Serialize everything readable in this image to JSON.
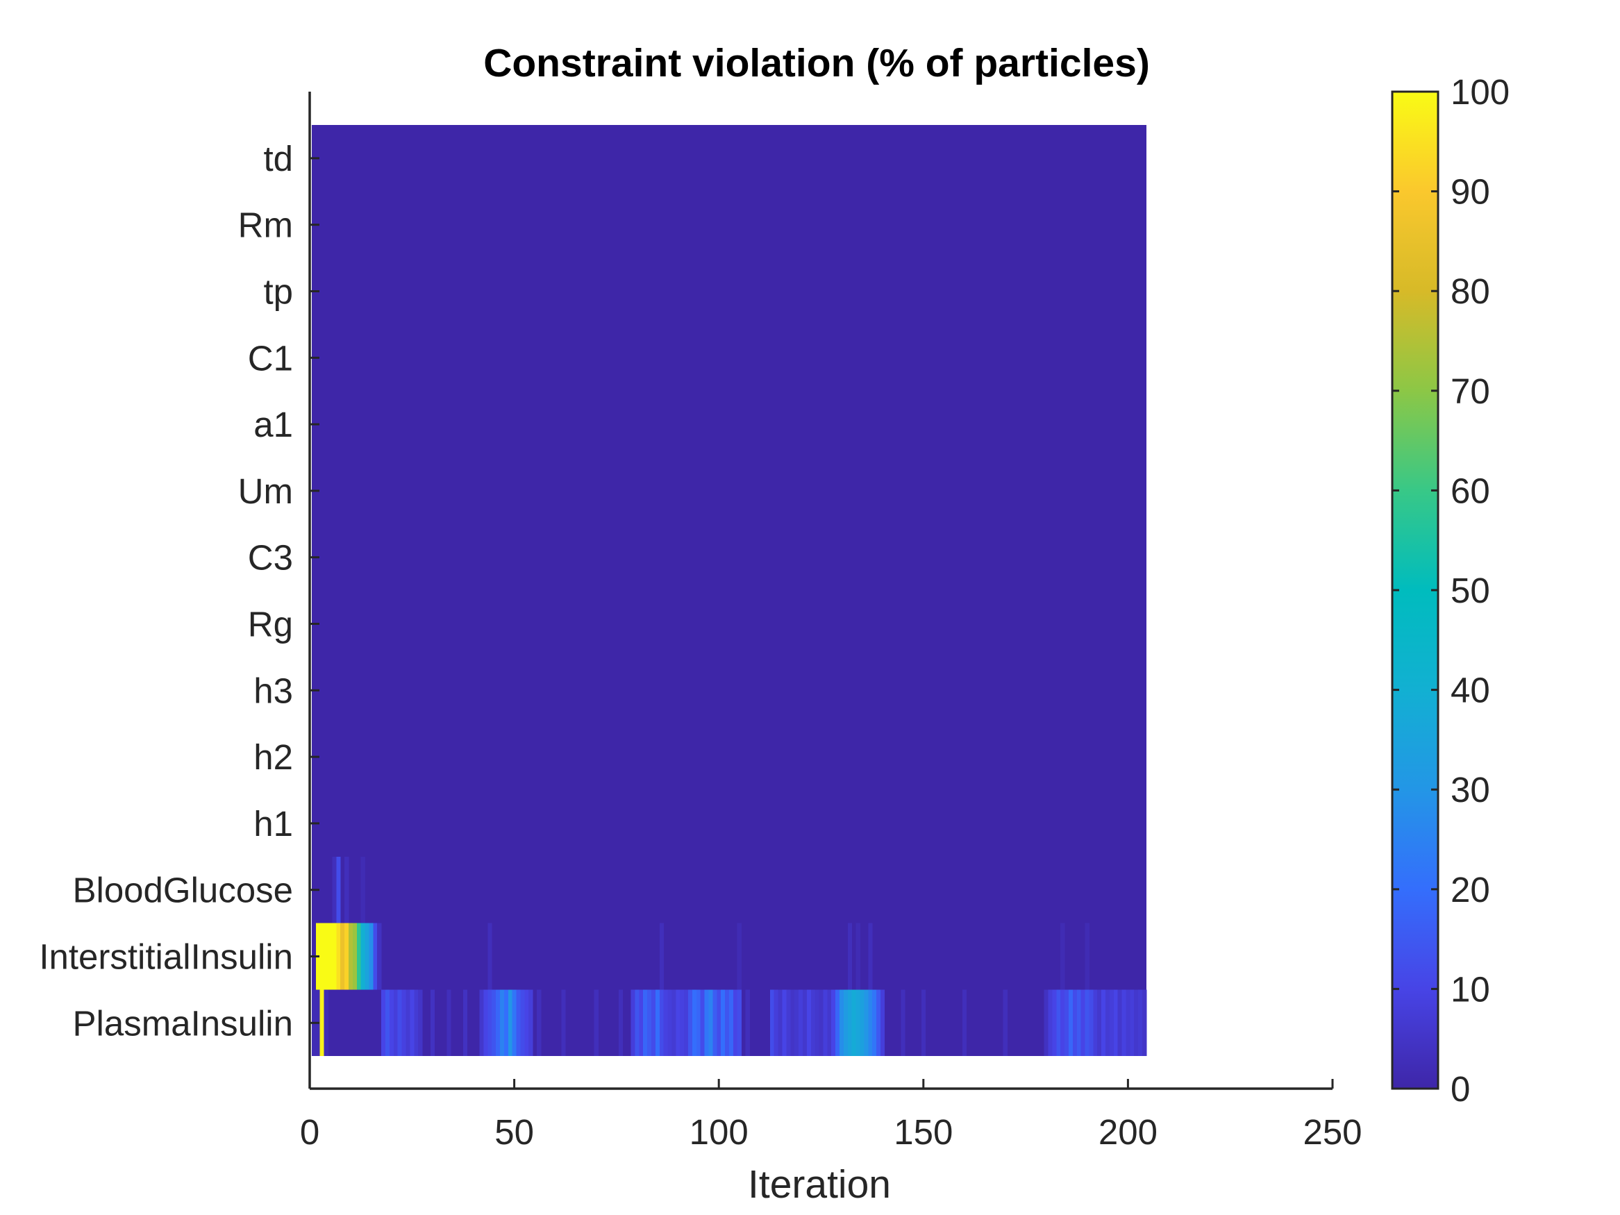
{
  "chart_data": {
    "type": "heatmap",
    "title": "Constraint violation (% of particles)",
    "xlabel": "Iteration",
    "ylabel": "",
    "xlim": [
      0,
      250
    ],
    "xticks": [
      0,
      50,
      100,
      150,
      200,
      250
    ],
    "n_iterations": 204,
    "rows": [
      "td",
      "Rm",
      "tp",
      "C1",
      "a1",
      "Um",
      "C3",
      "Rg",
      "h3",
      "h2",
      "h1",
      "BloodGlucose",
      "InterstitialInsulin",
      "PlasmaInsulin"
    ],
    "default_value": 0,
    "colorbar": {
      "min": 0,
      "max": 100,
      "ticks": [
        0,
        10,
        20,
        30,
        40,
        50,
        60,
        70,
        80,
        90,
        100
      ]
    },
    "colormap": "parula",
    "grid": false,
    "nonzero_cells": {
      "BloodGlucose": [
        [
          6,
          3
        ],
        [
          7,
          12
        ],
        [
          9,
          3
        ],
        [
          13,
          2
        ]
      ],
      "InterstitialInsulin": [
        [
          2,
          100
        ],
        [
          3,
          100
        ],
        [
          4,
          100
        ],
        [
          5,
          100
        ],
        [
          6,
          100
        ],
        [
          7,
          95
        ],
        [
          8,
          86
        ],
        [
          9,
          92
        ],
        [
          10,
          75
        ],
        [
          11,
          72
        ],
        [
          12,
          58
        ],
        [
          13,
          40
        ],
        [
          14,
          35
        ],
        [
          15,
          28
        ],
        [
          16,
          12
        ],
        [
          17,
          4
        ],
        [
          44,
          3
        ],
        [
          86,
          3
        ],
        [
          105,
          2
        ],
        [
          132,
          3
        ],
        [
          134,
          2
        ],
        [
          137,
          3
        ],
        [
          184,
          2
        ],
        [
          190,
          2
        ]
      ],
      "PlasmaInsulin": [
        [
          1,
          2
        ],
        [
          2,
          2
        ],
        [
          3,
          98
        ],
        [
          4,
          2
        ],
        [
          18,
          10
        ],
        [
          19,
          14
        ],
        [
          20,
          10
        ],
        [
          21,
          8
        ],
        [
          22,
          12
        ],
        [
          23,
          9
        ],
        [
          24,
          7
        ],
        [
          25,
          10
        ],
        [
          26,
          7
        ],
        [
          27,
          5
        ],
        [
          30,
          4
        ],
        [
          34,
          3
        ],
        [
          38,
          4
        ],
        [
          42,
          6
        ],
        [
          43,
          10
        ],
        [
          44,
          12
        ],
        [
          45,
          14
        ],
        [
          46,
          18
        ],
        [
          47,
          25
        ],
        [
          48,
          20
        ],
        [
          49,
          30
        ],
        [
          50,
          22
        ],
        [
          51,
          15
        ],
        [
          52,
          12
        ],
        [
          53,
          10
        ],
        [
          54,
          8
        ],
        [
          56,
          3
        ],
        [
          62,
          3
        ],
        [
          70,
          3
        ],
        [
          76,
          3
        ],
        [
          79,
          8
        ],
        [
          80,
          14
        ],
        [
          81,
          10
        ],
        [
          82,
          18
        ],
        [
          83,
          15
        ],
        [
          84,
          12
        ],
        [
          85,
          20
        ],
        [
          86,
          12
        ],
        [
          87,
          9
        ],
        [
          88,
          8
        ],
        [
          89,
          7
        ],
        [
          90,
          10
        ],
        [
          91,
          9
        ],
        [
          92,
          8
        ],
        [
          93,
          14
        ],
        [
          94,
          20
        ],
        [
          95,
          18
        ],
        [
          96,
          12
        ],
        [
          97,
          22
        ],
        [
          98,
          25
        ],
        [
          99,
          16
        ],
        [
          100,
          12
        ],
        [
          101,
          20
        ],
        [
          102,
          14
        ],
        [
          103,
          18
        ],
        [
          104,
          10
        ],
        [
          105,
          12
        ],
        [
          107,
          3
        ],
        [
          113,
          12
        ],
        [
          114,
          8
        ],
        [
          115,
          6
        ],
        [
          116,
          10
        ],
        [
          117,
          7
        ],
        [
          118,
          5
        ],
        [
          119,
          6
        ],
        [
          120,
          8
        ],
        [
          121,
          6
        ],
        [
          122,
          10
        ],
        [
          123,
          7
        ],
        [
          124,
          6
        ],
        [
          125,
          5
        ],
        [
          126,
          8
        ],
        [
          127,
          6
        ],
        [
          128,
          10
        ],
        [
          129,
          18
        ],
        [
          130,
          28
        ],
        [
          131,
          32
        ],
        [
          132,
          35
        ],
        [
          133,
          38
        ],
        [
          134,
          36
        ],
        [
          135,
          34
        ],
        [
          136,
          30
        ],
        [
          137,
          26
        ],
        [
          138,
          22
        ],
        [
          139,
          15
        ],
        [
          140,
          8
        ],
        [
          145,
          3
        ],
        [
          150,
          3
        ],
        [
          160,
          3
        ],
        [
          170,
          3
        ],
        [
          180,
          4
        ],
        [
          181,
          8
        ],
        [
          182,
          10
        ],
        [
          183,
          14
        ],
        [
          184,
          10
        ],
        [
          185,
          12
        ],
        [
          186,
          18
        ],
        [
          187,
          12
        ],
        [
          188,
          15
        ],
        [
          189,
          10
        ],
        [
          190,
          14
        ],
        [
          191,
          12
        ],
        [
          192,
          8
        ],
        [
          193,
          6
        ],
        [
          194,
          10
        ],
        [
          195,
          7
        ],
        [
          196,
          8
        ],
        [
          197,
          10
        ],
        [
          198,
          6
        ],
        [
          199,
          9
        ],
        [
          200,
          7
        ],
        [
          201,
          8
        ],
        [
          202,
          6
        ],
        [
          203,
          7
        ],
        [
          204,
          5
        ]
      ]
    }
  }
}
